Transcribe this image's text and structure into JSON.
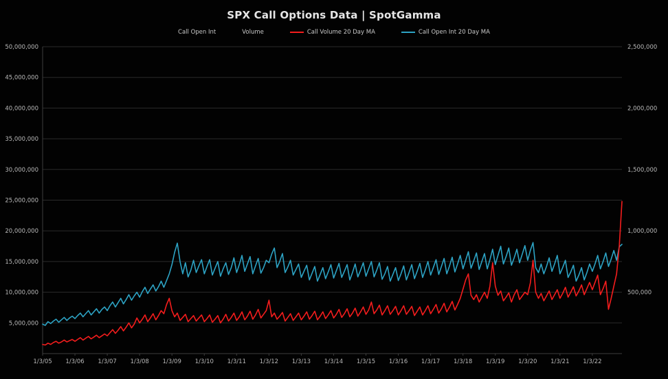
{
  "title": "SPX Call Options Data | SpotGamma",
  "legend": {
    "items": [
      {
        "label": "Call Open Int",
        "marker_color": ""
      },
      {
        "label": "Volume",
        "marker_color": ""
      },
      {
        "label": "Call Volume 20 Day MA",
        "marker_color": "#f51d1d"
      },
      {
        "label": "Call Open Int 20 Day MA",
        "marker_color": "#2da3c4"
      }
    ]
  },
  "chart_data": {
    "type": "line",
    "title": "SPX Call Options Data | SpotGamma",
    "xlabel": "",
    "ylabel_left": "Call Open Int",
    "ylabel_right": "Volume",
    "grid": true,
    "legend_position": "top",
    "x_start_year": 2005,
    "points_per_year": 12,
    "x_tick_labels": [
      "1/3/05",
      "1/3/06",
      "1/3/07",
      "1/3/08",
      "1/3/09",
      "1/3/10",
      "1/3/11",
      "1/3/12",
      "1/3/13",
      "1/3/14",
      "1/3/15",
      "1/3/16",
      "1/3/17",
      "1/3/18",
      "1/3/19",
      "1/3/20",
      "1/3/21",
      "1/3/22"
    ],
    "left_axis": {
      "min": 0,
      "max": 50000000,
      "tick_step": 5000000,
      "tick_labels": [
        "5,000,000",
        "10,000,000",
        "15,000,000",
        "20,000,000",
        "25,000,000",
        "30,000,000",
        "35,000,000",
        "40,000,000",
        "45,000,000",
        "50,000,000"
      ]
    },
    "right_axis": {
      "min": 0,
      "max": 2500000,
      "tick_step": 500000,
      "tick_labels": [
        "500,000",
        "1,000,000",
        "1,500,000",
        "2,000,000",
        "2,500,000"
      ]
    },
    "series": [
      {
        "name": "Call Open Int 20 Day MA",
        "axis": "left",
        "color": "#2da3c4",
        "unit": "contracts (millions)",
        "values_millions": [
          4.8,
          4.6,
          5.2,
          4.9,
          5.3,
          5.6,
          5.1,
          5.5,
          5.9,
          5.4,
          5.8,
          6.1,
          5.7,
          6.2,
          6.6,
          6.0,
          6.5,
          7.0,
          6.3,
          6.8,
          7.3,
          6.6,
          7.2,
          7.6,
          7.0,
          7.8,
          8.4,
          7.6,
          8.3,
          9.0,
          8.1,
          8.8,
          9.6,
          8.7,
          9.4,
          10.0,
          9.2,
          10.1,
          10.8,
          9.8,
          10.5,
          11.2,
          10.2,
          10.9,
          11.8,
          10.8,
          11.9,
          13.0,
          14.5,
          16.5,
          18.0,
          15.0,
          13.0,
          14.8,
          12.5,
          13.6,
          15.2,
          13.2,
          14.3,
          15.3,
          13.0,
          14.2,
          15.3,
          12.8,
          13.9,
          15.0,
          12.6,
          13.8,
          14.8,
          12.9,
          14.0,
          15.6,
          13.2,
          14.5,
          16.0,
          13.4,
          14.6,
          15.8,
          13.0,
          14.3,
          15.5,
          13.1,
          14.0,
          15.2,
          14.8,
          16.2,
          17.2,
          14.0,
          15.0,
          16.3,
          13.2,
          14.1,
          15.2,
          12.8,
          13.7,
          14.6,
          12.4,
          13.4,
          14.4,
          12.0,
          13.1,
          14.2,
          11.8,
          12.9,
          14.0,
          12.2,
          13.3,
          14.5,
          12.3,
          13.5,
          14.7,
          12.4,
          13.4,
          14.5,
          12.0,
          13.2,
          14.6,
          12.5,
          13.6,
          14.8,
          12.6,
          13.8,
          15.0,
          12.5,
          13.6,
          14.8,
          12.1,
          13.0,
          14.2,
          11.8,
          12.9,
          14.0,
          11.9,
          13.0,
          14.3,
          12.0,
          13.2,
          14.5,
          12.2,
          13.4,
          14.7,
          12.4,
          13.6,
          15.0,
          12.8,
          14.0,
          15.3,
          12.9,
          14.2,
          15.5,
          13.0,
          14.3,
          15.7,
          13.3,
          14.6,
          16.0,
          13.8,
          15.2,
          16.6,
          13.9,
          15.1,
          16.4,
          13.7,
          15.0,
          16.3,
          13.8,
          15.3,
          17.0,
          14.5,
          16.0,
          17.5,
          14.6,
          15.8,
          17.2,
          14.4,
          15.6,
          17.0,
          14.8,
          16.2,
          17.6,
          15.2,
          16.8,
          18.1,
          14.0,
          13.2,
          14.6,
          13.0,
          14.2,
          15.6,
          13.4,
          14.6,
          16.0,
          13.0,
          14.0,
          15.2,
          12.4,
          13.3,
          14.4,
          11.8,
          12.8,
          14.0,
          12.0,
          13.2,
          14.6,
          13.4,
          14.6,
          16.0,
          13.8,
          15.0,
          16.4,
          14.2,
          15.4,
          16.8,
          15.2,
          17.4,
          17.8
        ]
      },
      {
        "name": "Call Volume 20 Day MA",
        "axis": "right",
        "color": "#f51d1d",
        "unit": "contracts (millions)",
        "values_millions": [
          0.075,
          0.07,
          0.085,
          0.075,
          0.09,
          0.1,
          0.085,
          0.095,
          0.11,
          0.095,
          0.105,
          0.115,
          0.1,
          0.115,
          0.13,
          0.11,
          0.125,
          0.14,
          0.12,
          0.135,
          0.15,
          0.13,
          0.145,
          0.16,
          0.145,
          0.17,
          0.195,
          0.165,
          0.19,
          0.22,
          0.185,
          0.215,
          0.25,
          0.21,
          0.24,
          0.29,
          0.25,
          0.28,
          0.315,
          0.26,
          0.29,
          0.325,
          0.275,
          0.31,
          0.35,
          0.325,
          0.4,
          0.45,
          0.35,
          0.3,
          0.33,
          0.27,
          0.295,
          0.32,
          0.26,
          0.285,
          0.31,
          0.265,
          0.29,
          0.315,
          0.26,
          0.285,
          0.315,
          0.255,
          0.28,
          0.31,
          0.25,
          0.28,
          0.32,
          0.265,
          0.295,
          0.33,
          0.27,
          0.3,
          0.34,
          0.275,
          0.305,
          0.345,
          0.28,
          0.315,
          0.36,
          0.29,
          0.32,
          0.35,
          0.435,
          0.3,
          0.33,
          0.28,
          0.305,
          0.335,
          0.265,
          0.295,
          0.325,
          0.27,
          0.3,
          0.33,
          0.275,
          0.305,
          0.34,
          0.28,
          0.31,
          0.345,
          0.275,
          0.305,
          0.34,
          0.285,
          0.315,
          0.35,
          0.29,
          0.32,
          0.36,
          0.295,
          0.325,
          0.365,
          0.3,
          0.33,
          0.37,
          0.305,
          0.34,
          0.38,
          0.32,
          0.355,
          0.42,
          0.325,
          0.355,
          0.395,
          0.315,
          0.35,
          0.39,
          0.32,
          0.35,
          0.385,
          0.315,
          0.35,
          0.39,
          0.32,
          0.35,
          0.385,
          0.31,
          0.345,
          0.38,
          0.315,
          0.35,
          0.39,
          0.325,
          0.36,
          0.4,
          0.33,
          0.365,
          0.41,
          0.34,
          0.38,
          0.425,
          0.355,
          0.4,
          0.45,
          0.525,
          0.6,
          0.65,
          0.475,
          0.44,
          0.48,
          0.42,
          0.46,
          0.5,
          0.45,
          0.55,
          0.74,
          0.55,
          0.475,
          0.51,
          0.43,
          0.46,
          0.495,
          0.42,
          0.48,
          0.52,
          0.44,
          0.47,
          0.5,
          0.48,
          0.575,
          0.76,
          0.5,
          0.45,
          0.49,
          0.43,
          0.47,
          0.51,
          0.44,
          0.48,
          0.52,
          0.45,
          0.49,
          0.54,
          0.46,
          0.5,
          0.545,
          0.47,
          0.51,
          0.56,
          0.48,
          0.53,
          0.58,
          0.52,
          0.58,
          0.64,
          0.48,
          0.53,
          0.59,
          0.36,
          0.45,
          0.55,
          0.65,
          0.875,
          1.24
        ]
      }
    ]
  },
  "colors": {
    "background": "#020202",
    "grid": "#2b2b2b",
    "axis": "#3d3d3d",
    "text": "#b9b9b9",
    "title": "#e6e6e6"
  }
}
